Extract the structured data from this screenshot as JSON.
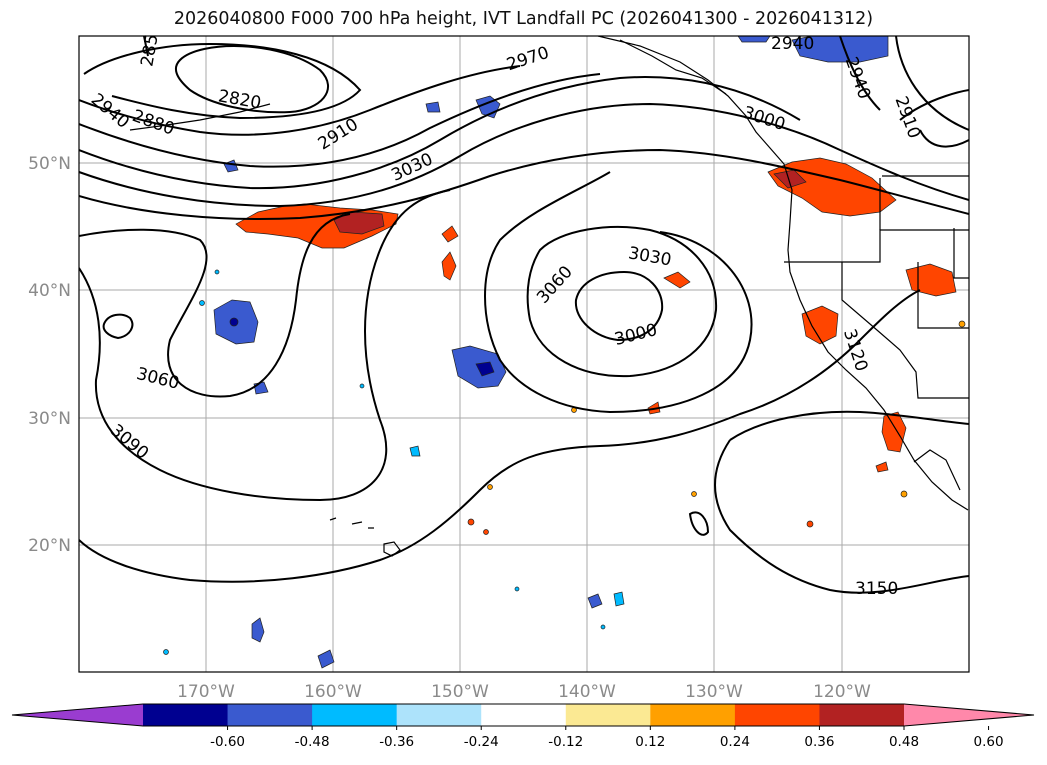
{
  "title": "2026040800 F000 700 hPa height, IVT Landfall PC (2026041300 - 2026041312)",
  "latitudes": [
    "50°N",
    "40°N",
    "30°N",
    "20°N"
  ],
  "longitudes": [
    "170°W",
    "160°W",
    "150°W",
    "140°W",
    "130°W",
    "120°W"
  ],
  "contour_labels": [
    "285",
    "2820",
    "2880",
    "2940",
    "2910",
    "2970",
    "3030",
    "3000",
    "2940",
    "2940",
    "2910",
    "3060",
    "3030",
    "3000",
    "3060",
    "3090",
    "3120",
    "3150"
  ],
  "colorbar": {
    "colors": [
      "#9a3cd0",
      "#000090",
      "#3a5acf",
      "#00bbff",
      "#ade3fb",
      "#ffffff",
      "#fbe993",
      "#ffa000",
      "#ff4500",
      "#b22222",
      "#ff88aa"
    ],
    "ticks": [
      "-0.60",
      "-0.48",
      "-0.36",
      "-0.24",
      "-0.12",
      "0.12",
      "0.24",
      "0.36",
      "0.48",
      "0.60"
    ]
  }
}
